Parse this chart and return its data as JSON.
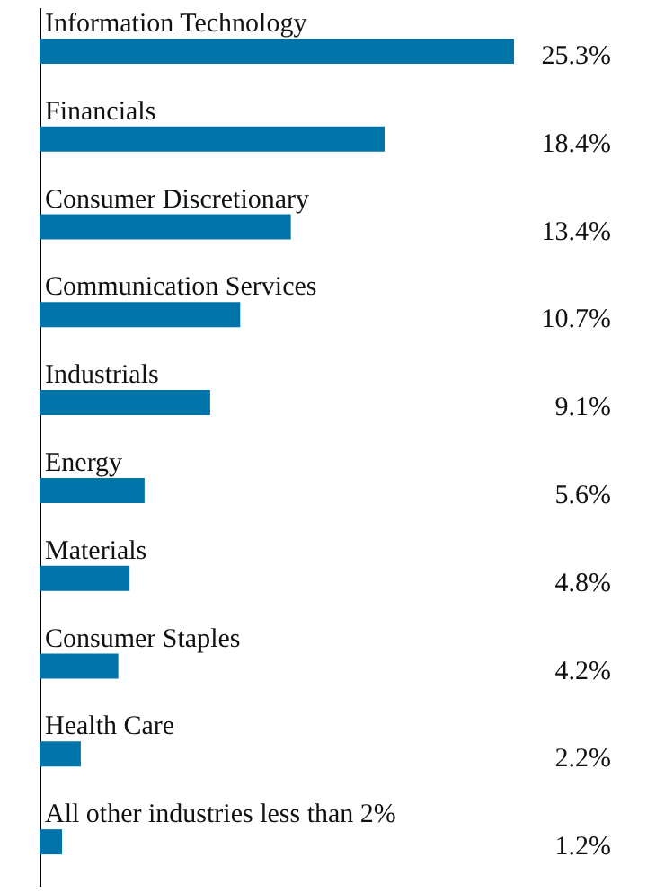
{
  "chart_data": {
    "type": "bar",
    "orientation": "horizontal",
    "data_labels": true,
    "categories": [
      "Information Technology",
      "Financials",
      "Consumer Discretionary",
      "Communication Services",
      "Industrials",
      "Energy",
      "Materials",
      "Consumer Staples",
      "Health Care",
      "All other industries less than 2%"
    ],
    "values": [
      25.3,
      18.4,
      13.4,
      10.7,
      9.1,
      5.6,
      4.8,
      4.2,
      2.2,
      1.2
    ],
    "value_labels": [
      "25.3%",
      "18.4%",
      "13.4%",
      "10.7%",
      "9.1%",
      "5.6%",
      "4.8%",
      "4.2%",
      "2.2%",
      "1.2%"
    ],
    "color": "#0073a8"
  }
}
